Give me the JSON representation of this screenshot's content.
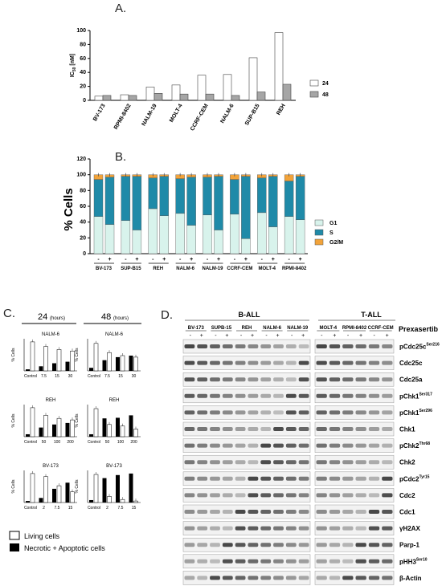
{
  "panels": {
    "a": "A.",
    "b": "B.",
    "c": "C.",
    "d": "D."
  },
  "chart_data": [
    {
      "id": "A",
      "type": "bar",
      "ylabel_main": "IC",
      "ylabel_sub": "50",
      "ylabel_rest": " [nM]",
      "ylim": [
        0,
        100
      ],
      "yticks": [
        "0",
        "20",
        "40",
        "60",
        "80",
        "100"
      ],
      "categories": [
        "BV-173",
        "RPMI-8402",
        "NALM-19",
        "MOLT-4",
        "CCRF-CEM",
        "NALM-6",
        "SUP-B15",
        "REH"
      ],
      "series": [
        {
          "name": "24",
          "color": "#ffffff",
          "values": [
            6,
            8,
            19,
            22,
            36,
            37,
            61,
            97
          ]
        },
        {
          "name": "48",
          "color": "#a6a6a6",
          "values": [
            7,
            7,
            10,
            9,
            9,
            7,
            12,
            23
          ]
        }
      ],
      "legend": "right"
    },
    {
      "id": "B",
      "type": "bar",
      "stacked": true,
      "ylabel": "% Cells",
      "ylim": [
        0,
        120
      ],
      "yticks": [
        "0",
        "20",
        "40",
        "60",
        "80",
        "100",
        "120"
      ],
      "treatment_labels": [
        "-",
        "+"
      ],
      "groups": [
        "BV-173",
        "SUP-B15",
        "REH",
        "NALM-6",
        "NALM-19",
        "CCRF-CEM",
        "MOLT-4",
        "RPMI-8402"
      ],
      "series": [
        {
          "name": "G1",
          "color": "#d8f3ec",
          "values": [
            47,
            37,
            42,
            30,
            57,
            48,
            51,
            36,
            49,
            30,
            50,
            19,
            52,
            34,
            47,
            43
          ]
        },
        {
          "name": "S",
          "color": "#1f8aa8",
          "values": [
            47,
            60,
            56,
            68,
            39,
            50,
            44,
            61,
            48,
            68,
            44,
            79,
            44,
            64,
            45,
            55
          ]
        },
        {
          "name": "G2/M",
          "color": "#f2a33a",
          "values": [
            6,
            3,
            2,
            2,
            4,
            2,
            5,
            3,
            3,
            2,
            6,
            2,
            4,
            2,
            8,
            2
          ]
        }
      ],
      "legend": "right"
    }
  ],
  "panel_c": {
    "timepoints": [
      "24",
      "48"
    ],
    "unit": "(hours)",
    "ylabel": "% Cells",
    "rows": [
      {
        "cell_line": "NALM-6",
        "doses_24": [
          "Control",
          "7.5",
          "15",
          "30"
        ],
        "doses_48": [
          "Control",
          "7.5",
          "15",
          "30"
        ],
        "living_24": [
          95,
          80,
          70,
          65
        ],
        "dead_24": [
          5,
          15,
          25,
          30
        ],
        "living_48": [
          90,
          60,
          50,
          45
        ],
        "dead_48": [
          10,
          35,
          45,
          50
        ]
      },
      {
        "cell_line": "REH",
        "doses_24": [
          "Control",
          "50",
          "100",
          "200"
        ],
        "doses_48": [
          "Control",
          "50",
          "100",
          "200"
        ],
        "living_24": [
          95,
          70,
          60,
          55
        ],
        "dead_24": [
          8,
          30,
          40,
          45
        ],
        "living_48": [
          92,
          40,
          35,
          25
        ],
        "dead_48": [
          8,
          60,
          62,
          70
        ]
      },
      {
        "cell_line": "BV-173",
        "doses_24": [
          "Control",
          "2",
          "7.5",
          "15"
        ],
        "doses_48": [
          "Control",
          "2",
          "7.5",
          "15"
        ],
        "living_24": [
          95,
          85,
          55,
          35
        ],
        "dead_24": [
          5,
          15,
          45,
          65
        ],
        "living_48": [
          92,
          20,
          10,
          5
        ],
        "dead_48": [
          8,
          80,
          90,
          95
        ]
      }
    ],
    "legend": [
      "Living cells",
      "Necrotic + Apoptotic  cells"
    ]
  },
  "panel_d": {
    "ball_header": "B-ALL",
    "tall_header": "T-ALL",
    "ball_lines": [
      "BV-173",
      "SUPB-15",
      "REH",
      "NALM-6",
      "NALM-19"
    ],
    "tall_lines": [
      "MOLT-4",
      "RPMI-8402",
      "CCRF-CEM"
    ],
    "treatment_title": "Prexasertib",
    "treatment_labels": [
      "-",
      "+"
    ],
    "proteins": [
      {
        "name": "pCdc25c",
        "sup": "Ser216"
      },
      {
        "name": "Cdc25c",
        "sup": ""
      },
      {
        "name": "Cdc25a",
        "sup": ""
      },
      {
        "name": "pChk1",
        "sup": "Ser317"
      },
      {
        "name": "pChk1",
        "sup": "Ser296"
      },
      {
        "name": "Chk1",
        "sup": ""
      },
      {
        "name": "pChk2",
        "sup": "Thr68"
      },
      {
        "name": "Chk2",
        "sup": ""
      },
      {
        "name": "pCdc2",
        "sup": "Tyr15"
      },
      {
        "name": "Cdc2",
        "sup": ""
      },
      {
        "name": "Cdc1",
        "sup": ""
      },
      {
        "name": "γH2AX",
        "sup": ""
      },
      {
        "name": "Parp-1",
        "sup": ""
      },
      {
        "name": "pHH3",
        "sup": "Ser10"
      },
      {
        "name": "β-Actin",
        "sup": ""
      }
    ]
  }
}
